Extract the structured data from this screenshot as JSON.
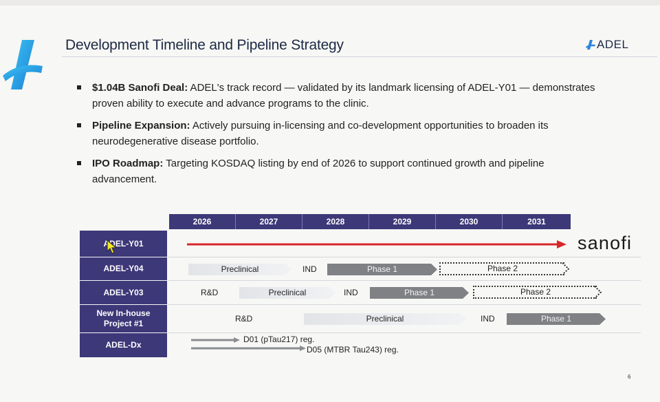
{
  "header": {
    "title": "Development Timeline and Pipeline Strategy",
    "brand": "ADEL",
    "accent": "#2aa7e4",
    "brand_color": "#1d2a44"
  },
  "bullets": [
    {
      "lead": "$1.04B Sanofi Deal:",
      "text": " ADEL's track record — validated by its landmark licensing of ADEL-Y01 — demonstrates proven ability to execute and advance programs to the clinic."
    },
    {
      "lead": "Pipeline Expansion:",
      "text": " Actively pursuing in-licensing and co-development opportunities to broaden its neurodegenerative disease portfolio."
    },
    {
      "lead": "IPO Roadmap:",
      "text": " Targeting KOSDAQ listing by end of 2026 to support continued growth and pipeline advancement."
    }
  ],
  "timeline": {
    "years": [
      "2026",
      "2027",
      "2028",
      "2029",
      "2030",
      "2031"
    ],
    "rows": {
      "y01": {
        "label": "ADEL-Y01",
        "partner": "sanofi"
      },
      "y04": {
        "label": "ADEL-Y04",
        "preclinical": "Preclinical",
        "ind": "IND",
        "phase1": "Phase 1",
        "phase2": "Phase 2"
      },
      "y03": {
        "label": "ADEL-Y03",
        "rd": "R&D",
        "preclinical": "Preclinical",
        "ind": "IND",
        "phase1": "Phase 1",
        "phase2": "Phase 2"
      },
      "inhouse": {
        "label_line1": "New In-house",
        "label_line2": "Project #1",
        "rd": "R&D",
        "preclinical": "Preclinical",
        "ind": "IND",
        "phase1": "Phase 1"
      },
      "dx": {
        "label": "ADEL-Dx",
        "d01": "D01 (pTau217) reg.",
        "d05": "D05 (MTBR Tau243) reg."
      }
    },
    "colors": {
      "header": "#3d3878",
      "partner_line": "#d8262b",
      "bar_dark": "#7f8185",
      "bar_light": "#e2e4e8"
    }
  },
  "footer": {
    "page_number": "6"
  }
}
